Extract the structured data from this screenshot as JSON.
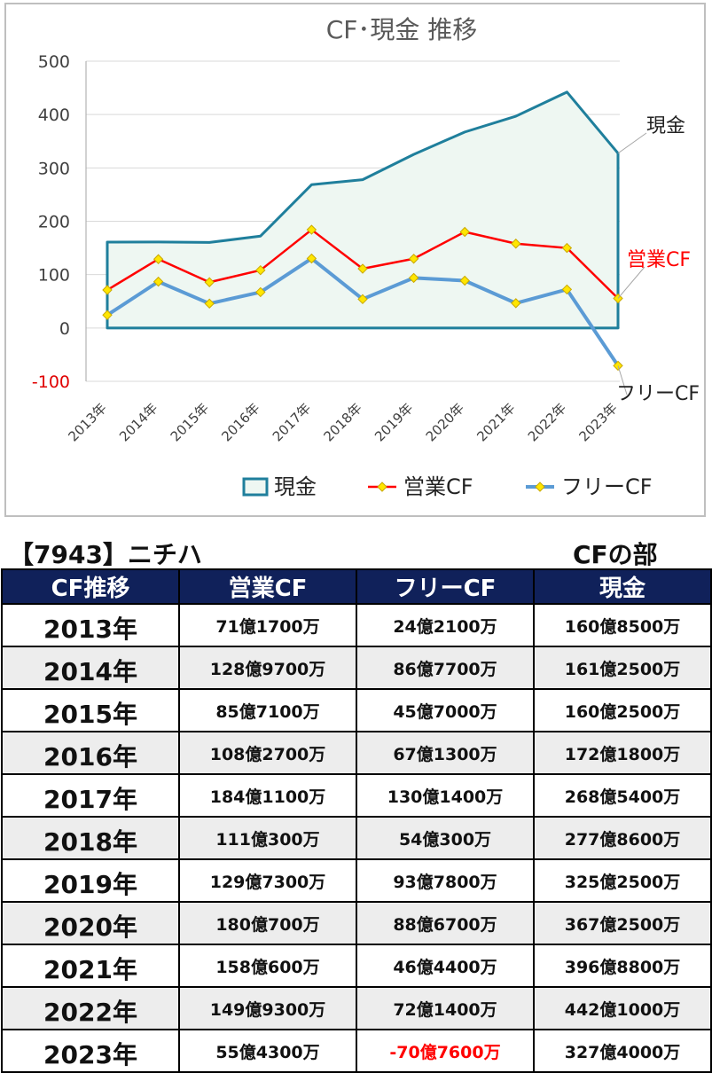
{
  "colors": {
    "cash": "#1f7f9c",
    "operating_cf": "#ff0000",
    "free_cf": "#5b9bd5",
    "marker_fill": "#ffe600",
    "area_fill": "#eef7f2",
    "header_bg": "#10215a",
    "negative_text": "#ff0000"
  },
  "chart_data": {
    "type": "line",
    "title": "CF･現金 推移",
    "categories": [
      "2013年",
      "2014年",
      "2015年",
      "2016年",
      "2017年",
      "2018年",
      "2019年",
      "2020年",
      "2021年",
      "2022年",
      "2023年"
    ],
    "ylim": [
      -100,
      500
    ],
    "yticks": [
      500,
      400,
      300,
      200,
      100,
      0,
      -100
    ],
    "grid": true,
    "series": [
      {
        "name": "現金",
        "style": "area",
        "values": [
          160.85,
          161.25,
          160.25,
          172.18,
          268.54,
          277.86,
          325.25,
          367.25,
          396.88,
          442.1,
          327.4
        ]
      },
      {
        "name": "営業CF",
        "style": "line-markers",
        "values": [
          71.17,
          128.97,
          85.71,
          108.27,
          184.11,
          111.03,
          129.73,
          180.07,
          158.06,
          149.93,
          55.43
        ]
      },
      {
        "name": "フリーCF",
        "style": "line-markers",
        "values": [
          24.21,
          86.77,
          45.7,
          67.13,
          130.14,
          54.03,
          93.78,
          88.67,
          46.44,
          72.14,
          -70.76
        ]
      }
    ],
    "legend": [
      "現金",
      "営業CF",
      "フリーCF"
    ],
    "legend_position": "bottom",
    "callouts": [
      "現金",
      "営業CF",
      "フリーCF"
    ]
  },
  "header": {
    "stock": "【7943】ニチハ",
    "section": "CFの部"
  },
  "table": {
    "columns": [
      "CF推移",
      "営業CF",
      "フリーCF",
      "現金"
    ],
    "rows": [
      {
        "year": "2013年",
        "op": "71億1700万",
        "free": "24億2100万",
        "cash": "160億8500万",
        "free_negative": false
      },
      {
        "year": "2014年",
        "op": "128億9700万",
        "free": "86億7700万",
        "cash": "161億2500万",
        "free_negative": false
      },
      {
        "year": "2015年",
        "op": "85億7100万",
        "free": "45億7000万",
        "cash": "160億2500万",
        "free_negative": false
      },
      {
        "year": "2016年",
        "op": "108億2700万",
        "free": "67億1300万",
        "cash": "172億1800万",
        "free_negative": false
      },
      {
        "year": "2017年",
        "op": "184億1100万",
        "free": "130億1400万",
        "cash": "268億5400万",
        "free_negative": false
      },
      {
        "year": "2018年",
        "op": "111億300万",
        "free": "54億300万",
        "cash": "277億8600万",
        "free_negative": false
      },
      {
        "year": "2019年",
        "op": "129億7300万",
        "free": "93億7800万",
        "cash": "325億2500万",
        "free_negative": false
      },
      {
        "year": "2020年",
        "op": "180億700万",
        "free": "88億6700万",
        "cash": "367億2500万",
        "free_negative": false
      },
      {
        "year": "2021年",
        "op": "158億600万",
        "free": "46億4400万",
        "cash": "396億8800万",
        "free_negative": false
      },
      {
        "year": "2022年",
        "op": "149億9300万",
        "free": "72億1400万",
        "cash": "442億1000万",
        "free_negative": false
      },
      {
        "year": "2023年",
        "op": "55億4300万",
        "free": "-70億7600万",
        "cash": "327億4000万",
        "free_negative": true
      }
    ]
  }
}
